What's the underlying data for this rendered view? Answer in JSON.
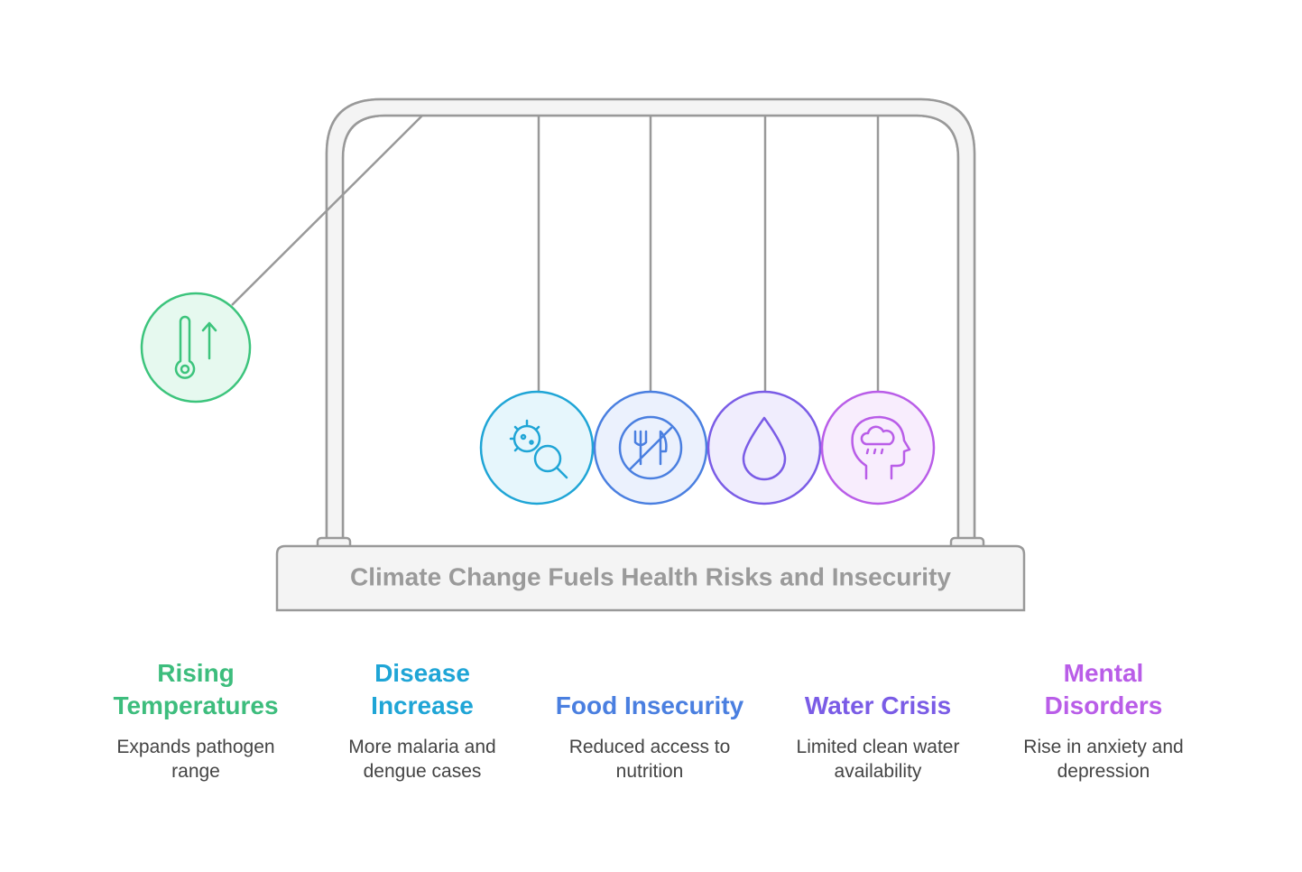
{
  "title": "Climate Change Fuels Health Risks and Insecurity",
  "items": [
    {
      "title": "Rising Temperatures",
      "description": "Expands pathogen range"
    },
    {
      "title": "Disease Increase",
      "description": "More malaria and dengue cases"
    },
    {
      "title": "Food Insecurity",
      "description": "Reduced access to nutrition"
    },
    {
      "title": "Water Crisis",
      "description": "Limited clean water availability"
    },
    {
      "title": "Mental Disorders",
      "description": "Rise in anxiety and depression"
    }
  ]
}
